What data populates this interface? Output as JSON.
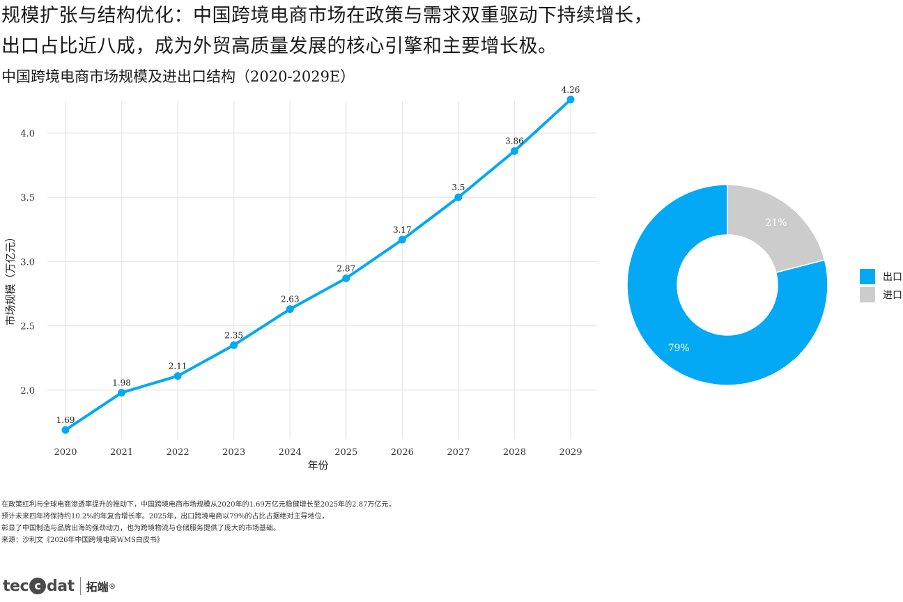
{
  "header": {
    "title_line1": "规模扩张与结构优化：中国跨境电商市场在政策与需求双重驱动下持续增长，",
    "title_line2": "出口占比近八成，成为外贸高质量发展的核心引擎和主要增长极。",
    "subtitle": "中国跨境电商市场规模及进出口结构（2020-2029E）"
  },
  "chart_data": [
    {
      "type": "line",
      "x": [
        "2020",
        "2021",
        "2022",
        "2023",
        "2024",
        "2025",
        "2026",
        "2027",
        "2028",
        "2029"
      ],
      "series": [
        {
          "values": [
            1.69,
            1.98,
            2.11,
            2.35,
            2.63,
            2.87,
            3.17,
            3.5,
            3.86,
            4.26
          ]
        }
      ],
      "data_labels": [
        "1.69",
        "1.98",
        "2.11",
        "2.35",
        "2.63",
        "2.87",
        "3.17",
        "3.5",
        "3.86",
        "4.26"
      ],
      "xlabel": "年份",
      "ylabel": "市场规模（万亿元）",
      "y_ticks": [
        2.0,
        2.5,
        3.0,
        3.5,
        4.0
      ],
      "y_tick_labels": [
        "2.0",
        "2.5",
        "3.0",
        "3.5",
        "4.0"
      ],
      "ylim": [
        1.62,
        4.33
      ],
      "grid": true,
      "color": "#03a9f4"
    },
    {
      "type": "pie",
      "donut": true,
      "slices": [
        {
          "label": "出口",
          "value": 79,
          "text": "79%",
          "color": "#03a9f4"
        },
        {
          "label": "进口",
          "value": 21,
          "text": "21%",
          "color": "#cccccc"
        }
      ],
      "legend": "right"
    }
  ],
  "legend": {
    "items": [
      {
        "label": "出口",
        "color": "#03a9f4"
      },
      {
        "label": "进口",
        "color": "#cccccc"
      }
    ]
  },
  "footnote": {
    "line1": "在政策红利与全球电商渗透率提升的推动下，中国跨境电商市场规模从2020年的1.69万亿元稳健增长至2025年的2.87万亿元，",
    "line2": "预计未来四年将保持约10.2%的年复合增长率。2025年，出口跨境电商以79%的占比占据绝对主导地位，",
    "line3": "彰显了中国制造与品牌出海的强劲动力，也为跨境物流与仓储服务提供了庞大的市场基础。",
    "line4": "来源：沙利文《2026年中国跨境电商WMS白皮书》"
  },
  "logo": {
    "brand_left": "tec",
    "brand_circle": "c",
    "brand_right": "dat",
    "brand_cn": "拓端",
    "mark": "®"
  }
}
